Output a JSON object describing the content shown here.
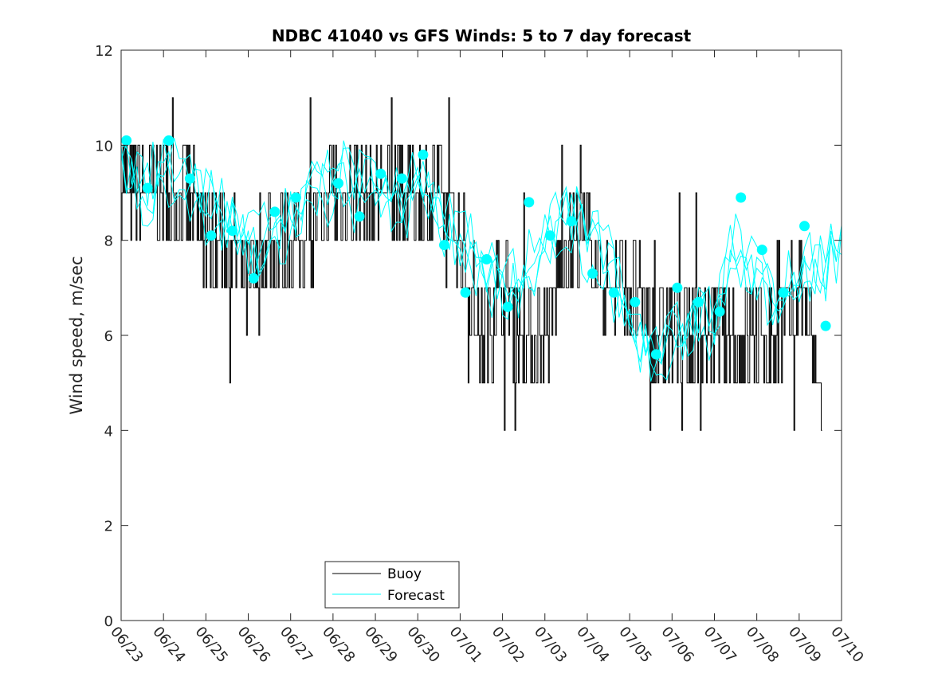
{
  "chart_data": {
    "type": "line",
    "title": "NDBC 41040 vs GFS Winds: 5 to 7 day forecast",
    "xlabel": "",
    "ylabel": "Wind speed, m/sec",
    "xlim": [
      "06/23",
      "07/10"
    ],
    "ylim": [
      0,
      12
    ],
    "y_ticks": [
      0,
      2,
      4,
      6,
      8,
      10,
      12
    ],
    "x_ticks": [
      "06/23",
      "06/24",
      "06/25",
      "06/26",
      "06/27",
      "06/28",
      "06/29",
      "06/30",
      "07/01",
      "07/02",
      "07/03",
      "07/04",
      "07/05",
      "07/06",
      "07/07",
      "07/08",
      "07/09",
      "07/10"
    ],
    "grid": false,
    "legend_position": "bottom-left",
    "colors": {
      "buoy": "#000000",
      "forecast": "#00ffff",
      "markers": "#00ffff",
      "axes": "#262626"
    },
    "series": [
      {
        "name": "Buoy",
        "x": [
          "06/23 00:00",
          "06/23 12:00",
          "06/24 00:00",
          "06/24 12:00",
          "06/25 00:00",
          "06/25 12:00",
          "06/26 00:00",
          "06/26 12:00",
          "06/27 00:00",
          "06/27 12:00",
          "06/28 00:00",
          "06/28 12:00",
          "06/29 00:00",
          "06/29 12:00",
          "06/30 00:00",
          "06/30 12:00",
          "07/01 00:00",
          "07/01 12:00",
          "07/02 00:00",
          "07/02 12:00",
          "07/03 00:00",
          "07/03 12:00",
          "07/04 00:00",
          "07/04 12:00",
          "07/05 00:00",
          "07/05 12:00",
          "07/06 00:00",
          "07/06 12:00",
          "07/07 00:00",
          "07/07 12:00",
          "07/08 00:00",
          "07/08 12:00",
          "07/09 00:00",
          "07/09 12:00"
        ],
        "values": [
          9,
          9,
          9,
          9,
          8,
          8,
          7,
          8,
          8,
          8,
          9,
          9,
          9,
          9,
          9,
          9,
          8,
          6,
          7,
          6,
          6,
          8,
          8,
          7,
          7,
          6,
          6,
          6,
          6,
          6,
          6,
          6,
          7,
          5
        ]
      },
      {
        "name": "Forecast",
        "x": [
          "06/23 00:00",
          "06/23 12:00",
          "06/24 00:00",
          "06/24 12:00",
          "06/25 00:00",
          "06/25 12:00",
          "06/26 00:00",
          "06/26 12:00",
          "06/27 00:00",
          "06/27 12:00",
          "06/28 00:00",
          "06/28 12:00",
          "06/29 00:00",
          "06/29 12:00",
          "06/30 00:00",
          "06/30 12:00",
          "07/01 00:00",
          "07/01 12:00",
          "07/02 00:00",
          "07/02 12:00",
          "07/03 00:00",
          "07/03 12:00",
          "07/04 00:00",
          "07/04 12:00",
          "07/05 00:00",
          "07/05 12:00",
          "07/06 00:00",
          "07/06 12:00",
          "07/07 00:00",
          "07/07 12:00",
          "07/08 00:00",
          "07/08 12:00",
          "07/09 00:00",
          "07/09 12:00",
          "07/10 00:00"
        ],
        "values": [
          9.8,
          9.3,
          9.8,
          9.2,
          8.6,
          8.2,
          7.8,
          8.4,
          8.8,
          8.9,
          9.0,
          8.8,
          9.2,
          9.0,
          9.4,
          8.6,
          7.6,
          7.2,
          7.0,
          7.6,
          8.2,
          8.5,
          7.8,
          7.2,
          6.4,
          6.0,
          6.3,
          6.2,
          6.0,
          7.5,
          7.2,
          7.0,
          7.6,
          7.4,
          7.8
        ]
      }
    ],
    "forecast_markers": [
      {
        "x": "06/23 03:00",
        "y": 10.1
      },
      {
        "x": "06/23 15:00",
        "y": 9.1
      },
      {
        "x": "06/24 03:00",
        "y": 10.1
      },
      {
        "x": "06/24 15:00",
        "y": 9.3
      },
      {
        "x": "06/25 03:00",
        "y": 8.1
      },
      {
        "x": "06/25 15:00",
        "y": 8.2
      },
      {
        "x": "06/26 03:00",
        "y": 7.2
      },
      {
        "x": "06/26 15:00",
        "y": 8.6
      },
      {
        "x": "06/27 03:00",
        "y": 8.9
      },
      {
        "x": "06/28 03:00",
        "y": 9.2
      },
      {
        "x": "06/28 15:00",
        "y": 8.5
      },
      {
        "x": "06/29 03:00",
        "y": 9.4
      },
      {
        "x": "06/29 15:00",
        "y": 9.3
      },
      {
        "x": "06/30 03:00",
        "y": 9.8
      },
      {
        "x": "06/30 15:00",
        "y": 7.9
      },
      {
        "x": "07/01 03:00",
        "y": 6.9
      },
      {
        "x": "07/01 15:00",
        "y": 7.6
      },
      {
        "x": "07/02 03:00",
        "y": 6.6
      },
      {
        "x": "07/02 15:00",
        "y": 8.8
      },
      {
        "x": "07/03 03:00",
        "y": 8.1
      },
      {
        "x": "07/03 15:00",
        "y": 8.4
      },
      {
        "x": "07/04 03:00",
        "y": 7.3
      },
      {
        "x": "07/04 15:00",
        "y": 6.9
      },
      {
        "x": "07/05 03:00",
        "y": 6.7
      },
      {
        "x": "07/05 15:00",
        "y": 5.6
      },
      {
        "x": "07/06 03:00",
        "y": 7.0
      },
      {
        "x": "07/06 15:00",
        "y": 6.7
      },
      {
        "x": "07/07 03:00",
        "y": 6.5
      },
      {
        "x": "07/07 15:00",
        "y": 8.9
      },
      {
        "x": "07/08 03:00",
        "y": 7.8
      },
      {
        "x": "07/08 15:00",
        "y": 6.9
      },
      {
        "x": "07/09 03:00",
        "y": 8.3
      },
      {
        "x": "07/09 15:00",
        "y": 6.2
      }
    ]
  }
}
